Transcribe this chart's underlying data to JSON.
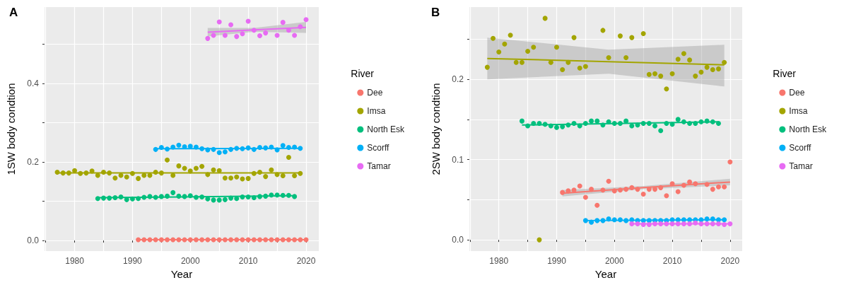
{
  "chart_data": [
    {
      "type": "scatter",
      "title": "A",
      "xlabel": "Year",
      "ylabel": "1SW body condtion",
      "legend_title": "River",
      "legend": "right",
      "grid": true,
      "marker": "circle",
      "xlim": [
        1974.8,
        2022.2
      ],
      "xticks": [
        {
          "value": 1975,
          "label": null
        },
        1980,
        {
          "value": 1985,
          "label": null
        },
        1990,
        {
          "value": 1995,
          "label": null
        },
        2000,
        {
          "value": 2005,
          "label": null
        },
        2010,
        {
          "value": 2015,
          "label": null
        },
        2020
      ],
      "ylim": [
        -0.027,
        0.595
      ],
      "yticks": [
        {
          "value": 0,
          "label": "0.0"
        },
        {
          "value": 0.1,
          "label": null
        },
        {
          "value": 0.2,
          "label": "0.2"
        },
        {
          "value": 0.3,
          "label": null
        },
        {
          "value": 0.4,
          "label": "0.4"
        },
        {
          "value": 0.5,
          "label": null
        }
      ],
      "series": [
        {
          "type": "line",
          "marker": "none",
          "color": "#f8766d",
          "x": [
            1991,
            2020
          ],
          "values": [
            0.002,
            0.002
          ]
        },
        {
          "type": "line",
          "marker": "none",
          "color": "#a3a500",
          "x": [
            1977,
            2019
          ],
          "values": [
            0.172,
            0.172
          ]
        },
        {
          "type": "line",
          "marker": "none",
          "color": "#00bf7d",
          "x": [
            1984,
            2018
          ],
          "values": [
            0.109,
            0.114
          ]
        },
        {
          "type": "line",
          "marker": "none",
          "color": "#00b0f6",
          "x": [
            1994,
            2019
          ],
          "values": [
            0.234,
            0.235
          ]
        },
        {
          "type": "line",
          "marker": "none",
          "color": "#e76bf3",
          "x": [
            2003,
            2011,
            2020
          ],
          "values": [
            0.531,
            0.537,
            0.543
          ],
          "lower": [
            0.52,
            0.532,
            0.529
          ],
          "upper": [
            0.542,
            0.542,
            0.557
          ]
        },
        {
          "name": "Dee",
          "color": "#f8766d",
          "x": [
            1991,
            1992,
            1993,
            1994,
            1995,
            1996,
            1997,
            1998,
            1999,
            2000,
            2001,
            2002,
            2003,
            2004,
            2005,
            2006,
            2007,
            2008,
            2009,
            2010,
            2011,
            2012,
            2013,
            2014,
            2015,
            2016,
            2017,
            2018,
            2019,
            2020
          ],
          "values": [
            0.002,
            0.002,
            0.002,
            0.002,
            0.002,
            0.002,
            0.002,
            0.002,
            0.002,
            0.002,
            0.002,
            0.002,
            0.002,
            0.002,
            0.002,
            0.002,
            0.002,
            0.002,
            0.002,
            0.002,
            0.002,
            0.002,
            0.002,
            0.002,
            0.002,
            0.002,
            0.002,
            0.002,
            0.002,
            0.002
          ]
        },
        {
          "name": "Imsa",
          "color": "#a3a500",
          "x": [
            1977,
            1978,
            1979,
            1980,
            1981,
            1982,
            1983,
            1984,
            1985,
            1986,
            1987,
            1988,
            1989,
            1990,
            1991,
            1992,
            1993,
            1994,
            1995,
            1996,
            1997,
            1998,
            1999,
            2000,
            2001,
            2002,
            2003,
            2004,
            2005,
            2006,
            2007,
            2008,
            2009,
            2010,
            2011,
            2012,
            2013,
            2014,
            2015,
            2016,
            2017,
            2018,
            2019
          ],
          "values": [
            0.174,
            0.172,
            0.172,
            0.178,
            0.171,
            0.172,
            0.177,
            0.166,
            0.174,
            0.172,
            0.159,
            0.166,
            0.162,
            0.171,
            0.158,
            0.166,
            0.166,
            0.174,
            0.172,
            0.205,
            0.166,
            0.19,
            0.184,
            0.177,
            0.184,
            0.189,
            0.168,
            0.18,
            0.178,
            0.159,
            0.159,
            0.162,
            0.157,
            0.158,
            0.171,
            0.174,
            0.163,
            0.18,
            0.168,
            0.165,
            0.212,
            0.165,
            0.171
          ]
        },
        {
          "name": "North Esk",
          "color": "#00bf7d",
          "x": [
            1984,
            1985,
            1986,
            1987,
            1988,
            1989,
            1990,
            1991,
            1992,
            1993,
            1994,
            1995,
            1996,
            1997,
            1998,
            1999,
            2000,
            2001,
            2002,
            2003,
            2004,
            2005,
            2006,
            2007,
            2008,
            2009,
            2010,
            2011,
            2012,
            2013,
            2014,
            2015,
            2016,
            2017,
            2018
          ],
          "values": [
            0.107,
            0.108,
            0.108,
            0.109,
            0.111,
            0.104,
            0.106,
            0.107,
            0.11,
            0.112,
            0.11,
            0.112,
            0.113,
            0.122,
            0.113,
            0.112,
            0.114,
            0.11,
            0.111,
            0.106,
            0.103,
            0.103,
            0.104,
            0.108,
            0.107,
            0.111,
            0.111,
            0.109,
            0.112,
            0.113,
            0.116,
            0.116,
            0.115,
            0.115,
            0.112
          ]
        },
        {
          "name": "Scorff",
          "color": "#00b0f6",
          "x": [
            1994,
            1995,
            1996,
            1997,
            1998,
            1999,
            2000,
            2001,
            2002,
            2003,
            2004,
            2005,
            2006,
            2007,
            2008,
            2009,
            2010,
            2011,
            2012,
            2013,
            2014,
            2015,
            2016,
            2017,
            2018,
            2019
          ],
          "values": [
            0.232,
            0.237,
            0.233,
            0.238,
            0.243,
            0.239,
            0.24,
            0.238,
            0.234,
            0.231,
            0.232,
            0.224,
            0.226,
            0.232,
            0.235,
            0.234,
            0.236,
            0.232,
            0.237,
            0.236,
            0.238,
            0.231,
            0.242,
            0.237,
            0.238,
            0.235
          ]
        },
        {
          "name": "Tamar",
          "color": "#e76bf3",
          "x": [
            2003,
            2004,
            2005,
            2006,
            2007,
            2008,
            2009,
            2010,
            2011,
            2012,
            2013,
            2015,
            2016,
            2017,
            2018,
            2019,
            2020
          ],
          "values": [
            0.515,
            0.523,
            0.557,
            0.523,
            0.55,
            0.52,
            0.527,
            0.559,
            0.536,
            0.522,
            0.529,
            0.523,
            0.556,
            0.536,
            0.523,
            0.545,
            0.563
          ]
        }
      ]
    },
    {
      "type": "scatter",
      "title": "B",
      "xlabel": "Year",
      "ylabel": "2SW body condtion",
      "legend_title": "River",
      "legend": "right",
      "grid": true,
      "marker": "circle",
      "xlim": [
        1974.9,
        2022.1
      ],
      "xticks": [
        {
          "value": 1975,
          "label": null
        },
        1980,
        {
          "value": 1985,
          "label": null
        },
        1990,
        {
          "value": 1995,
          "label": null
        },
        2000,
        {
          "value": 2005,
          "label": null
        },
        2010,
        {
          "value": 2015,
          "label": null
        },
        2020
      ],
      "ylim": [
        -0.014,
        0.29
      ],
      "yticks": [
        {
          "value": 0,
          "label": "0.0"
        },
        {
          "value": 0.05,
          "label": null
        },
        {
          "value": 0.1,
          "label": "0.1"
        },
        {
          "value": 0.15,
          "label": null
        },
        {
          "value": 0.2,
          "label": "0.2"
        },
        {
          "value": 0.25,
          "label": null
        }
      ],
      "series": [
        {
          "type": "line",
          "marker": "none",
          "color": "#f8766d",
          "x": [
            1991,
            2005,
            2020
          ],
          "values": [
            0.058,
            0.065,
            0.072
          ],
          "lower": [
            0.054,
            0.063,
            0.068
          ],
          "upper": [
            0.062,
            0.067,
            0.076
          ]
        },
        {
          "type": "line",
          "marker": "none",
          "color": "#a3a500",
          "x": [
            1978,
            1999,
            2019
          ],
          "values": [
            0.226,
            0.222,
            0.218
          ],
          "lower": [
            0.2,
            0.207,
            0.191
          ],
          "upper": [
            0.252,
            0.237,
            0.243
          ]
        },
        {
          "type": "line",
          "marker": "none",
          "color": "#00bf7d",
          "x": [
            1984,
            2018
          ],
          "values": [
            0.143,
            0.147
          ]
        },
        {
          "type": "line",
          "marker": "none",
          "color": "#00b0f6",
          "x": [
            1995,
            2019
          ],
          "values": [
            0.024,
            0.025
          ]
        },
        {
          "type": "line",
          "marker": "none",
          "color": "#e76bf3",
          "x": [
            2003,
            2020
          ],
          "values": [
            0.02,
            0.02
          ]
        },
        {
          "name": "Dee",
          "color": "#f8766d",
          "x": [
            1991,
            1992,
            1993,
            1994,
            1995,
            1996,
            1997,
            1998,
            1999,
            2000,
            2001,
            2002,
            2003,
            2004,
            2005,
            2006,
            2007,
            2008,
            2009,
            2010,
            2011,
            2012,
            2013,
            2014,
            2016,
            2017,
            2018,
            2019,
            2020
          ],
          "values": [
            0.059,
            0.061,
            0.062,
            0.067,
            0.053,
            0.063,
            0.043,
            0.062,
            0.073,
            0.061,
            0.062,
            0.063,
            0.065,
            0.063,
            0.057,
            0.063,
            0.063,
            0.065,
            0.055,
            0.07,
            0.06,
            0.068,
            0.072,
            0.07,
            0.069,
            0.063,
            0.066,
            0.066,
            0.097
          ]
        },
        {
          "name": "Imsa",
          "color": "#a3a500",
          "x": [
            1978,
            1979,
            1980,
            1981,
            1982,
            1983,
            1984,
            1985,
            1986,
            1987,
            1988,
            1989,
            1990,
            1991,
            1992,
            1993,
            1994,
            1995,
            1998,
            1999,
            2001,
            2002,
            2003,
            2005,
            2006,
            2007,
            2008,
            2009,
            2010,
            2011,
            2012,
            2013,
            2014,
            2015,
            2016,
            2017,
            2018,
            2019
          ],
          "values": [
            0.215,
            0.251,
            0.234,
            0.244,
            0.255,
            0.221,
            0.221,
            0.235,
            0.24,
            0.0,
            0.276,
            0.221,
            0.24,
            0.212,
            0.221,
            0.252,
            0.214,
            0.216,
            0.261,
            0.227,
            0.254,
            0.227,
            0.252,
            0.257,
            0.206,
            0.207,
            0.204,
            0.188,
            0.207,
            0.225,
            0.232,
            0.224,
            0.204,
            0.209,
            0.215,
            0.212,
            0.213,
            0.221
          ]
        },
        {
          "name": "North Esk",
          "color": "#00bf7d",
          "x": [
            1984,
            1985,
            1986,
            1987,
            1988,
            1989,
            1990,
            1991,
            1992,
            1993,
            1994,
            1995,
            1996,
            1997,
            1998,
            1999,
            2000,
            2001,
            2002,
            2003,
            2004,
            2005,
            2006,
            2007,
            2008,
            2009,
            2010,
            2011,
            2012,
            2013,
            2014,
            2015,
            2016,
            2017,
            2018
          ],
          "values": [
            0.148,
            0.142,
            0.145,
            0.145,
            0.144,
            0.142,
            0.14,
            0.141,
            0.143,
            0.145,
            0.142,
            0.145,
            0.148,
            0.148,
            0.143,
            0.147,
            0.145,
            0.145,
            0.148,
            0.142,
            0.143,
            0.145,
            0.145,
            0.142,
            0.136,
            0.145,
            0.144,
            0.15,
            0.147,
            0.145,
            0.145,
            0.147,
            0.148,
            0.147,
            0.145
          ]
        },
        {
          "name": "Scorff",
          "color": "#00b0f6",
          "x": [
            1995,
            1996,
            1997,
            1998,
            1999,
            2000,
            2001,
            2002,
            2003,
            2004,
            2005,
            2006,
            2007,
            2008,
            2009,
            2010,
            2011,
            2012,
            2013,
            2014,
            2015,
            2016,
            2017,
            2018,
            2019
          ],
          "values": [
            0.024,
            0.022,
            0.024,
            0.024,
            0.026,
            0.025,
            0.025,
            0.024,
            0.025,
            0.024,
            0.024,
            0.024,
            0.024,
            0.024,
            0.024,
            0.025,
            0.025,
            0.025,
            0.025,
            0.025,
            0.025,
            0.026,
            0.026,
            0.025,
            0.025
          ]
        },
        {
          "name": "Tamar",
          "color": "#e76bf3",
          "x": [
            2003,
            2004,
            2005,
            2006,
            2007,
            2008,
            2009,
            2010,
            2011,
            2012,
            2013,
            2014,
            2015,
            2016,
            2017,
            2018,
            2019,
            2020
          ],
          "values": [
            0.02,
            0.02,
            0.019,
            0.019,
            0.02,
            0.02,
            0.02,
            0.02,
            0.02,
            0.02,
            0.02,
            0.021,
            0.02,
            0.02,
            0.02,
            0.02,
            0.019,
            0.02
          ]
        }
      ]
    }
  ]
}
